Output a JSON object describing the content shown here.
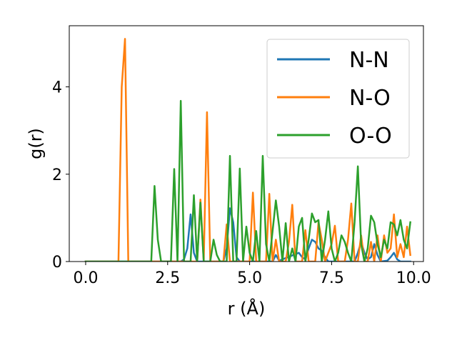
{
  "chart_data": {
    "type": "line",
    "title": "",
    "xlabel": "r (Å)",
    "ylabel": "g(r)",
    "xlim": [
      -0.5,
      10.3
    ],
    "ylim": [
      0,
      5.4
    ],
    "xticks": [
      0,
      2.5,
      5,
      7.5,
      10
    ],
    "xtick_labels": [
      "0.0",
      "2.5",
      "5.0",
      "7.5",
      "10.0"
    ],
    "yticks": [
      0,
      2,
      4
    ],
    "ytick_labels": [
      "0",
      "2",
      "4"
    ],
    "grid": false,
    "legend_position": "top-right",
    "series": [
      {
        "name": "N-N",
        "color": "#1f77b4",
        "points": [
          [
            0,
            0
          ],
          [
            2.9,
            0
          ],
          [
            3.0,
            0.05
          ],
          [
            3.1,
            0.3
          ],
          [
            3.2,
            1.08
          ],
          [
            3.3,
            0.2
          ],
          [
            3.4,
            0
          ],
          [
            4.2,
            0
          ],
          [
            4.3,
            0.3
          ],
          [
            4.4,
            1.22
          ],
          [
            4.5,
            0.9
          ],
          [
            4.6,
            0.1
          ],
          [
            4.7,
            0
          ],
          [
            5.7,
            0
          ],
          [
            5.8,
            0.15
          ],
          [
            5.9,
            0.02
          ],
          [
            6.5,
            0.2
          ],
          [
            6.6,
            0.1
          ],
          [
            6.7,
            0.05
          ],
          [
            6.8,
            0.3
          ],
          [
            6.9,
            0.5
          ],
          [
            7.0,
            0.45
          ],
          [
            7.1,
            0.3
          ],
          [
            7.2,
            0.25
          ],
          [
            7.3,
            0.1
          ],
          [
            7.4,
            0
          ],
          [
            8.2,
            0
          ],
          [
            8.3,
            0.2
          ],
          [
            8.4,
            0.45
          ],
          [
            8.5,
            0.2
          ],
          [
            8.6,
            0.05
          ],
          [
            8.7,
            0.1
          ],
          [
            8.8,
            0.4
          ],
          [
            8.9,
            0.15
          ],
          [
            9.0,
            0
          ],
          [
            9.2,
            0.02
          ],
          [
            9.3,
            0.1
          ],
          [
            9.4,
            0.2
          ],
          [
            9.5,
            0.05
          ],
          [
            9.6,
            0
          ],
          [
            9.9,
            0
          ]
        ]
      },
      {
        "name": "N-O",
        "color": "#ff7f0e",
        "points": [
          [
            0,
            0
          ],
          [
            1.0,
            0
          ],
          [
            1.1,
            4.0
          ],
          [
            1.2,
            5.1
          ],
          [
            1.3,
            0
          ],
          [
            3.4,
            0
          ],
          [
            3.5,
            1.42
          ],
          [
            3.6,
            0
          ],
          [
            3.7,
            3.42
          ],
          [
            3.8,
            0
          ],
          [
            4.2,
            0
          ],
          [
            4.3,
            0.85
          ],
          [
            4.4,
            0
          ],
          [
            5.0,
            0
          ],
          [
            5.1,
            1.58
          ],
          [
            5.2,
            0
          ],
          [
            5.5,
            0
          ],
          [
            5.6,
            1.55
          ],
          [
            5.7,
            0
          ],
          [
            5.8,
            0.5
          ],
          [
            5.9,
            0
          ],
          [
            6.1,
            0
          ],
          [
            6.2,
            0.45
          ],
          [
            6.3,
            1.3
          ],
          [
            6.4,
            0
          ],
          [
            6.6,
            0
          ],
          [
            6.7,
            0.72
          ],
          [
            6.8,
            0
          ],
          [
            7.0,
            0
          ],
          [
            7.1,
            0.9
          ],
          [
            7.2,
            0.5
          ],
          [
            7.3,
            0
          ],
          [
            7.5,
            0.4
          ],
          [
            7.6,
            0.82
          ],
          [
            7.7,
            0
          ],
          [
            7.9,
            0
          ],
          [
            8.0,
            0.5
          ],
          [
            8.1,
            1.33
          ],
          [
            8.2,
            0
          ],
          [
            8.3,
            0
          ],
          [
            8.4,
            0.6
          ],
          [
            8.5,
            0
          ],
          [
            8.6,
            0
          ],
          [
            8.7,
            0.45
          ],
          [
            8.8,
            0
          ],
          [
            8.9,
            0.6
          ],
          [
            9.0,
            0
          ],
          [
            9.1,
            0.6
          ],
          [
            9.2,
            0.2
          ],
          [
            9.3,
            0.3
          ],
          [
            9.4,
            1.08
          ],
          [
            9.5,
            0.1
          ],
          [
            9.6,
            0.4
          ],
          [
            9.7,
            0.1
          ],
          [
            9.8,
            0.8
          ],
          [
            9.9,
            0.15
          ]
        ]
      },
      {
        "name": "O-O",
        "color": "#2ca02c",
        "points": [
          [
            0,
            0
          ],
          [
            2.0,
            0
          ],
          [
            2.1,
            1.73
          ],
          [
            2.2,
            0.5
          ],
          [
            2.3,
            0
          ],
          [
            2.6,
            0
          ],
          [
            2.7,
            2.12
          ],
          [
            2.8,
            0
          ],
          [
            2.9,
            3.68
          ],
          [
            3.0,
            0
          ],
          [
            3.2,
            0
          ],
          [
            3.3,
            1.52
          ],
          [
            3.4,
            0
          ],
          [
            3.5,
            1.35
          ],
          [
            3.6,
            0
          ],
          [
            3.8,
            0
          ],
          [
            3.9,
            0.5
          ],
          [
            4.0,
            0.15
          ],
          [
            4.1,
            0
          ],
          [
            4.3,
            0
          ],
          [
            4.4,
            2.42
          ],
          [
            4.5,
            0
          ],
          [
            4.6,
            0
          ],
          [
            4.7,
            2.13
          ],
          [
            4.8,
            0
          ],
          [
            4.9,
            0.8
          ],
          [
            5.0,
            0.2
          ],
          [
            5.1,
            0
          ],
          [
            5.2,
            0.7
          ],
          [
            5.3,
            0
          ],
          [
            5.4,
            2.42
          ],
          [
            5.5,
            0.4
          ],
          [
            5.6,
            0
          ],
          [
            5.8,
            1.4
          ],
          [
            5.9,
            0.8
          ],
          [
            6.0,
            0
          ],
          [
            6.1,
            0.88
          ],
          [
            6.2,
            0
          ],
          [
            6.3,
            0.3
          ],
          [
            6.4,
            0
          ],
          [
            6.5,
            0.8
          ],
          [
            6.6,
            1.0
          ],
          [
            6.7,
            0
          ],
          [
            6.8,
            0.5
          ],
          [
            6.9,
            1.1
          ],
          [
            7.0,
            0.9
          ],
          [
            7.1,
            0.95
          ],
          [
            7.2,
            0
          ],
          [
            7.3,
            0.5
          ],
          [
            7.4,
            1.15
          ],
          [
            7.5,
            0.3
          ],
          [
            7.6,
            0
          ],
          [
            7.7,
            0.2
          ],
          [
            7.8,
            0.6
          ],
          [
            7.9,
            0.45
          ],
          [
            8.0,
            0.2
          ],
          [
            8.1,
            0
          ],
          [
            8.2,
            0.9
          ],
          [
            8.3,
            2.18
          ],
          [
            8.4,
            0.4
          ],
          [
            8.5,
            0
          ],
          [
            8.6,
            0.3
          ],
          [
            8.7,
            1.05
          ],
          [
            8.8,
            0.9
          ],
          [
            8.9,
            0.4
          ],
          [
            9.0,
            0.1
          ],
          [
            9.1,
            0.5
          ],
          [
            9.2,
            0.3
          ],
          [
            9.3,
            0.9
          ],
          [
            9.4,
            0.85
          ],
          [
            9.5,
            0.6
          ],
          [
            9.6,
            0.95
          ],
          [
            9.7,
            0.5
          ],
          [
            9.8,
            0.3
          ],
          [
            9.9,
            0.9
          ]
        ]
      }
    ]
  }
}
